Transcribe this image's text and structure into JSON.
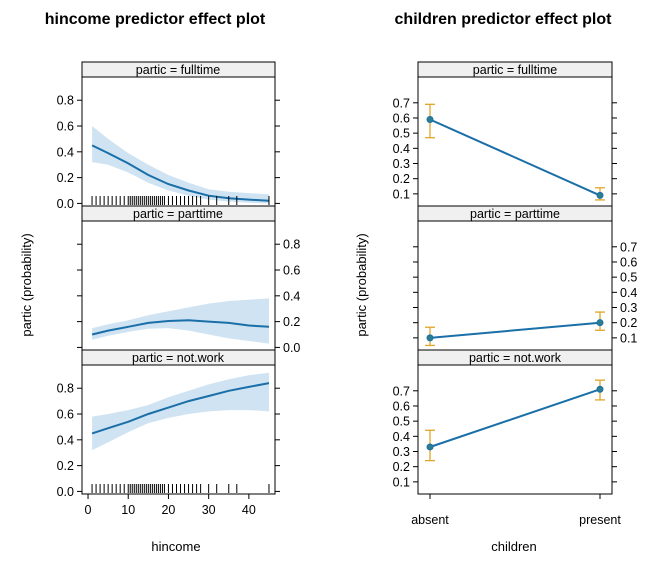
{
  "chart_data": [
    {
      "type": "line",
      "title": "hincome predictor effect plot",
      "xlabel": "hincome",
      "ylabel": "partic (probability)",
      "xlim": [
        -1.5,
        46.5
      ],
      "x_ticks": [
        0,
        10,
        20,
        30,
        40
      ],
      "x_tick_labels": [
        "0",
        "10",
        "20",
        "30",
        "40"
      ],
      "rug": [
        1,
        2,
        3,
        4,
        5,
        6,
        7,
        8,
        9,
        10,
        10.5,
        11,
        11.5,
        12,
        12.5,
        13,
        13.5,
        14,
        14.5,
        15,
        15.5,
        16,
        16.5,
        17,
        17.5,
        18,
        18.5,
        19,
        20,
        21,
        22,
        23,
        24,
        25,
        26,
        27,
        28,
        30,
        32,
        35,
        37,
        45
      ],
      "panels": [
        {
          "strip": "partic = fulltime",
          "y_ticks": [
            0.0,
            0.2,
            0.4,
            0.6,
            0.8
          ],
          "y_tick_labels": [
            "0.0",
            "0.2",
            "0.4",
            "0.6",
            "0.8"
          ],
          "y_axis_side": "left",
          "x": [
            1,
            5,
            10,
            15,
            20,
            25,
            30,
            35,
            40,
            45
          ],
          "fit": [
            0.45,
            0.39,
            0.31,
            0.22,
            0.15,
            0.1,
            0.06,
            0.04,
            0.03,
            0.02
          ],
          "lower": [
            0.32,
            0.3,
            0.24,
            0.16,
            0.1,
            0.06,
            0.03,
            0.015,
            0.005,
            0.0
          ],
          "upper": [
            0.6,
            0.5,
            0.39,
            0.3,
            0.22,
            0.16,
            0.11,
            0.09,
            0.08,
            0.07
          ]
        },
        {
          "strip": "partic = parttime",
          "y_ticks": [
            0.0,
            0.2,
            0.4,
            0.6,
            0.8
          ],
          "y_tick_labels": [
            "0.0",
            "0.2",
            "0.4",
            "0.6",
            "0.8"
          ],
          "y_axis_side": "right",
          "x": [
            1,
            5,
            10,
            15,
            20,
            25,
            30,
            35,
            40,
            45
          ],
          "fit": [
            0.1,
            0.13,
            0.16,
            0.19,
            0.205,
            0.21,
            0.2,
            0.19,
            0.17,
            0.16
          ],
          "lower": [
            0.06,
            0.09,
            0.12,
            0.145,
            0.15,
            0.13,
            0.1,
            0.07,
            0.05,
            0.03
          ],
          "upper": [
            0.15,
            0.18,
            0.21,
            0.25,
            0.28,
            0.31,
            0.34,
            0.36,
            0.37,
            0.38
          ]
        },
        {
          "strip": "partic = not.work",
          "y_ticks": [
            0.0,
            0.2,
            0.4,
            0.6,
            0.8
          ],
          "y_tick_labels": [
            "0.0",
            "0.2",
            "0.4",
            "0.6",
            "0.8"
          ],
          "y_axis_side": "left",
          "x": [
            1,
            5,
            10,
            15,
            20,
            25,
            30,
            35,
            40,
            45
          ],
          "fit": [
            0.45,
            0.49,
            0.54,
            0.6,
            0.65,
            0.7,
            0.74,
            0.78,
            0.81,
            0.84
          ],
          "lower": [
            0.32,
            0.38,
            0.46,
            0.53,
            0.57,
            0.6,
            0.62,
            0.63,
            0.63,
            0.62
          ],
          "upper": [
            0.58,
            0.6,
            0.63,
            0.67,
            0.73,
            0.78,
            0.83,
            0.87,
            0.9,
            0.92
          ]
        }
      ]
    },
    {
      "type": "line",
      "title": "children predictor effect plot",
      "xlabel": "children",
      "ylabel": "partic (probability)",
      "categories": [
        "absent",
        "present"
      ],
      "panels": [
        {
          "strip": "partic = fulltime",
          "y_ticks": [
            0.1,
            0.2,
            0.3,
            0.4,
            0.5,
            0.6,
            0.7
          ],
          "y_tick_labels": [
            "0.1",
            "0.2",
            "0.3",
            "0.4",
            "0.5",
            "0.6",
            "0.7"
          ],
          "y_axis_side": "left",
          "fit": [
            0.59,
            0.09
          ],
          "lower": [
            0.47,
            0.06
          ],
          "upper": [
            0.69,
            0.14
          ]
        },
        {
          "strip": "partic = parttime",
          "y_ticks": [
            0.1,
            0.2,
            0.3,
            0.4,
            0.5,
            0.6,
            0.7
          ],
          "y_tick_labels": [
            "0.1",
            "0.2",
            "0.3",
            "0.4",
            "0.5",
            "0.6",
            "0.7"
          ],
          "y_axis_side": "right",
          "fit": [
            0.1,
            0.2
          ],
          "lower": [
            0.05,
            0.15
          ],
          "upper": [
            0.17,
            0.27
          ]
        },
        {
          "strip": "partic = not.work",
          "y_ticks": [
            0.1,
            0.2,
            0.3,
            0.4,
            0.5,
            0.6,
            0.7
          ],
          "y_tick_labels": [
            "0.1",
            "0.2",
            "0.3",
            "0.4",
            "0.5",
            "0.6",
            "0.7"
          ],
          "y_axis_side": "left",
          "fit": [
            0.33,
            0.71
          ],
          "lower": [
            0.24,
            0.64
          ],
          "upper": [
            0.44,
            0.77
          ]
        }
      ]
    }
  ],
  "colors": {
    "line": "#1a6fa8",
    "band": "#cfe3f2",
    "point": "#2b7f8f",
    "errorbar": "#e0a52a",
    "strip": "#f0f0f0",
    "frame": "#000000"
  }
}
